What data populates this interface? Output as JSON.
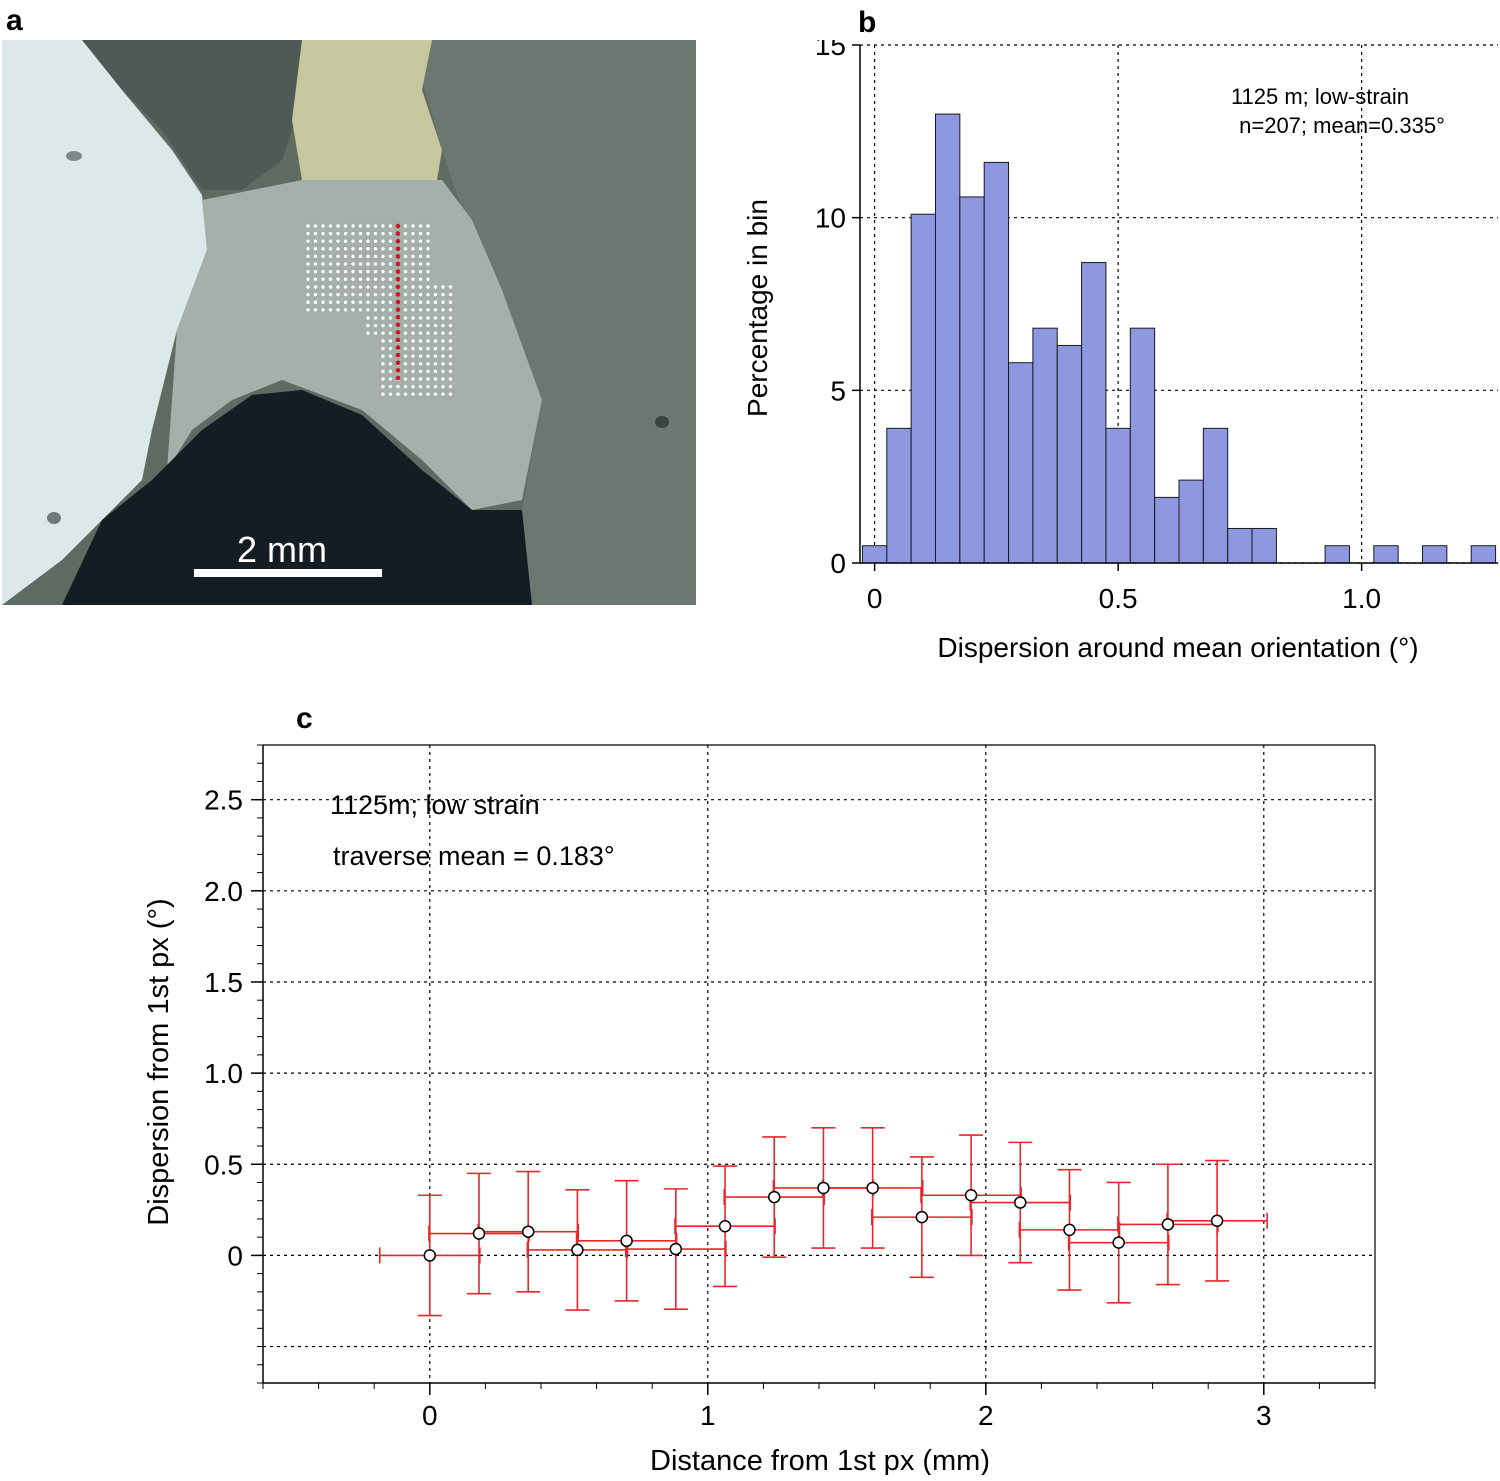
{
  "panels": {
    "a": {
      "label": "a",
      "scale_bar_label": "2 mm"
    },
    "b": {
      "label": "b"
    },
    "c": {
      "label": "c"
    }
  },
  "chart_data": [
    {
      "type": "bar",
      "panel": "b",
      "xlabel": "Dispersion around mean orientation (°)",
      "ylabel": "Percentage in bin",
      "xlim": [
        -0.03,
        1.28
      ],
      "ylim": [
        0,
        15
      ],
      "xticks": [
        0,
        0.5,
        1.0
      ],
      "xtick_labels": [
        "0",
        "0.5",
        "1.0"
      ],
      "yticks": [
        0,
        5,
        10,
        15
      ],
      "ytick_labels": [
        "0",
        "5",
        "10",
        "15"
      ],
      "grid": true,
      "annotation_lines": [
        "1125 m; low-strain",
        "n=207; mean=0.335°"
      ],
      "bar_color": "#8e98e0",
      "bin_width": 0.05,
      "bin_starts": [
        -0.025,
        0.025,
        0.075,
        0.125,
        0.175,
        0.225,
        0.275,
        0.325,
        0.375,
        0.425,
        0.475,
        0.525,
        0.575,
        0.625,
        0.675,
        0.725,
        0.775,
        0.825,
        0.875,
        0.925,
        0.975,
        1.025,
        1.075,
        1.125,
        1.175,
        1.225
      ],
      "values": [
        0.5,
        3.9,
        10.1,
        13.0,
        10.6,
        11.6,
        5.8,
        6.8,
        6.3,
        8.7,
        3.9,
        6.8,
        1.9,
        2.4,
        3.9,
        1.0,
        1.0,
        0,
        0,
        0.5,
        0,
        0.5,
        0,
        0.5,
        0,
        0.5
      ]
    },
    {
      "type": "scatter",
      "panel": "c",
      "xlabel": "Distance from 1st px (mm)",
      "ylabel": "Dispersion from 1st px (°)",
      "xlim": [
        -0.6,
        3.4
      ],
      "ylim": [
        -0.7,
        2.8
      ],
      "xticks": [
        0,
        1,
        2,
        3
      ],
      "xtick_labels": [
        "0",
        "1",
        "2",
        "3"
      ],
      "yticks": [
        0,
        0.5,
        1.0,
        1.5,
        2.0,
        2.5
      ],
      "ytick_labels": [
        "0",
        "0.5",
        "1.0",
        "1.5",
        "2.0",
        "2.5"
      ],
      "grid_y": [
        -0.5,
        0,
        0.5,
        1.0,
        1.5,
        2.0,
        2.5
      ],
      "grid": true,
      "annotation_lines": [
        "1125m; low strain",
        "traverse mean = 0.183°"
      ],
      "error_color": "#e8262b",
      "x_error_half_width": 0.18,
      "y_error_half_width": 0.33,
      "points": [
        {
          "x": 0.0,
          "y": 0.0
        },
        {
          "x": 0.177,
          "y": 0.12
        },
        {
          "x": 0.354,
          "y": 0.13
        },
        {
          "x": 0.531,
          "y": 0.03
        },
        {
          "x": 0.708,
          "y": 0.08
        },
        {
          "x": 0.885,
          "y": 0.035
        },
        {
          "x": 1.062,
          "y": 0.16
        },
        {
          "x": 1.239,
          "y": 0.32
        },
        {
          "x": 1.416,
          "y": 0.37
        },
        {
          "x": 1.593,
          "y": 0.37
        },
        {
          "x": 1.77,
          "y": 0.21
        },
        {
          "x": 1.947,
          "y": 0.33
        },
        {
          "x": 2.124,
          "y": 0.29
        },
        {
          "x": 2.301,
          "y": 0.14
        },
        {
          "x": 2.478,
          "y": 0.07
        },
        {
          "x": 2.655,
          "y": 0.17
        },
        {
          "x": 2.832,
          "y": 0.19
        }
      ]
    }
  ]
}
